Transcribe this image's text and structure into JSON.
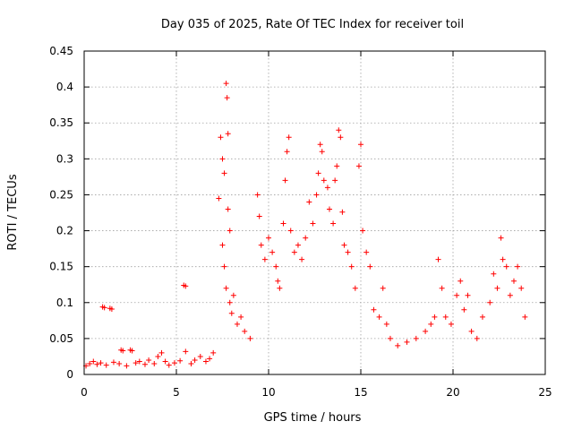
{
  "chart_data": {
    "type": "scatter",
    "title": "Day 035 of 2025, Rate Of TEC Index for receiver toil",
    "xlabel": "GPS time / hours",
    "ylabel": "ROTI / TECUs",
    "xlim": [
      0,
      25
    ],
    "ylim": [
      0,
      0.45
    ],
    "xticks": [
      0,
      5,
      10,
      15,
      20,
      25
    ],
    "xtick_labels": [
      "0",
      "5",
      "10",
      "15",
      "20",
      "25"
    ],
    "yticks": [
      0,
      0.05,
      0.1,
      0.15,
      0.2,
      0.25,
      0.3,
      0.35,
      0.4,
      0.45
    ],
    "ytick_labels": [
      "0",
      "0.05",
      "0.1",
      "0.15",
      "0.2",
      "0.25",
      "0.3",
      "0.35",
      "0.4",
      "0.45"
    ],
    "grid": true,
    "marker": "+",
    "series_color": "#ff0000",
    "series": [
      {
        "name": "ROTI",
        "points": [
          [
            0.1,
            0.012
          ],
          [
            0.3,
            0.015
          ],
          [
            0.5,
            0.018
          ],
          [
            0.7,
            0.014
          ],
          [
            0.9,
            0.016
          ],
          [
            1.0,
            0.094
          ],
          [
            1.1,
            0.093
          ],
          [
            1.4,
            0.092
          ],
          [
            1.5,
            0.091
          ],
          [
            1.2,
            0.013
          ],
          [
            1.6,
            0.017
          ],
          [
            1.9,
            0.015
          ],
          [
            2.0,
            0.034
          ],
          [
            2.1,
            0.033
          ],
          [
            2.3,
            0.012
          ],
          [
            2.5,
            0.034
          ],
          [
            2.6,
            0.033
          ],
          [
            2.8,
            0.016
          ],
          [
            3.0,
            0.018
          ],
          [
            3.3,
            0.014
          ],
          [
            3.5,
            0.02
          ],
          [
            3.8,
            0.015
          ],
          [
            4.0,
            0.025
          ],
          [
            4.2,
            0.03
          ],
          [
            4.4,
            0.018
          ],
          [
            4.6,
            0.013
          ],
          [
            4.9,
            0.016
          ],
          [
            5.2,
            0.019
          ],
          [
            5.4,
            0.124
          ],
          [
            5.5,
            0.123
          ],
          [
            5.5,
            0.032
          ],
          [
            5.8,
            0.015
          ],
          [
            6.0,
            0.02
          ],
          [
            6.3,
            0.025
          ],
          [
            6.6,
            0.018
          ],
          [
            6.8,
            0.022
          ],
          [
            7.0,
            0.03
          ],
          [
            7.3,
            0.245
          ],
          [
            7.4,
            0.33
          ],
          [
            7.5,
            0.3
          ],
          [
            7.6,
            0.28
          ],
          [
            7.7,
            0.405
          ],
          [
            7.75,
            0.385
          ],
          [
            7.8,
            0.335
          ],
          [
            7.8,
            0.23
          ],
          [
            7.9,
            0.2
          ],
          [
            7.5,
            0.18
          ],
          [
            7.6,
            0.15
          ],
          [
            7.7,
            0.12
          ],
          [
            7.9,
            0.1
          ],
          [
            8.0,
            0.085
          ],
          [
            8.1,
            0.11
          ],
          [
            8.3,
            0.07
          ],
          [
            8.5,
            0.08
          ],
          [
            8.7,
            0.06
          ],
          [
            9.0,
            0.05
          ],
          [
            9.4,
            0.25
          ],
          [
            9.5,
            0.22
          ],
          [
            9.6,
            0.18
          ],
          [
            9.8,
            0.16
          ],
          [
            10.0,
            0.19
          ],
          [
            10.2,
            0.17
          ],
          [
            10.4,
            0.15
          ],
          [
            10.5,
            0.13
          ],
          [
            10.6,
            0.12
          ],
          [
            10.8,
            0.21
          ],
          [
            10.9,
            0.27
          ],
          [
            11.0,
            0.31
          ],
          [
            11.1,
            0.33
          ],
          [
            11.2,
            0.2
          ],
          [
            11.4,
            0.17
          ],
          [
            11.6,
            0.18
          ],
          [
            11.8,
            0.16
          ],
          [
            12.0,
            0.19
          ],
          [
            12.2,
            0.24
          ],
          [
            12.4,
            0.21
          ],
          [
            12.6,
            0.25
          ],
          [
            12.7,
            0.28
          ],
          [
            12.8,
            0.32
          ],
          [
            12.9,
            0.31
          ],
          [
            13.0,
            0.27
          ],
          [
            13.2,
            0.26
          ],
          [
            13.3,
            0.23
          ],
          [
            13.5,
            0.21
          ],
          [
            13.6,
            0.27
          ],
          [
            13.7,
            0.29
          ],
          [
            13.8,
            0.34
          ],
          [
            13.9,
            0.33
          ],
          [
            14.0,
            0.226
          ],
          [
            14.1,
            0.18
          ],
          [
            14.3,
            0.17
          ],
          [
            14.5,
            0.15
          ],
          [
            14.7,
            0.12
          ],
          [
            14.9,
            0.29
          ],
          [
            15.0,
            0.32
          ],
          [
            15.1,
            0.2
          ],
          [
            15.3,
            0.17
          ],
          [
            15.5,
            0.15
          ],
          [
            15.7,
            0.09
          ],
          [
            16.0,
            0.08
          ],
          [
            16.2,
            0.12
          ],
          [
            16.4,
            0.07
          ],
          [
            16.6,
            0.05
          ],
          [
            17.0,
            0.04
          ],
          [
            17.5,
            0.045
          ],
          [
            18.0,
            0.05
          ],
          [
            18.5,
            0.06
          ],
          [
            18.8,
            0.07
          ],
          [
            19.0,
            0.08
          ],
          [
            19.2,
            0.16
          ],
          [
            19.4,
            0.12
          ],
          [
            19.6,
            0.08
          ],
          [
            19.9,
            0.07
          ],
          [
            20.2,
            0.11
          ],
          [
            20.4,
            0.13
          ],
          [
            20.6,
            0.09
          ],
          [
            20.8,
            0.11
          ],
          [
            21.0,
            0.06
          ],
          [
            21.3,
            0.05
          ],
          [
            21.6,
            0.08
          ],
          [
            22.0,
            0.1
          ],
          [
            22.2,
            0.14
          ],
          [
            22.4,
            0.12
          ],
          [
            22.6,
            0.19
          ],
          [
            22.7,
            0.16
          ],
          [
            22.9,
            0.15
          ],
          [
            23.1,
            0.11
          ],
          [
            23.3,
            0.13
          ],
          [
            23.5,
            0.15
          ],
          [
            23.7,
            0.12
          ],
          [
            23.9,
            0.08
          ]
        ]
      }
    ]
  }
}
